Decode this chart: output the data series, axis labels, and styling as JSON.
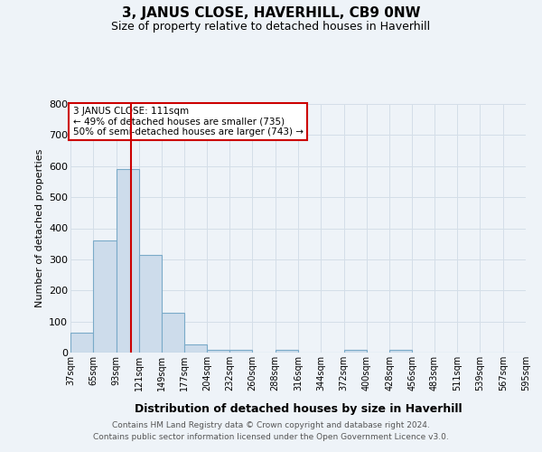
{
  "title": "3, JANUS CLOSE, HAVERHILL, CB9 0NW",
  "subtitle": "Size of property relative to detached houses in Haverhill",
  "xlabel": "Distribution of detached houses by size in Haverhill",
  "ylabel": "Number of detached properties",
  "bar_values": [
    65,
    360,
    590,
    315,
    128,
    27,
    9,
    8,
    0,
    8,
    0,
    0,
    8,
    0,
    8,
    0,
    0,
    0,
    0,
    0
  ],
  "bin_edges": [
    37,
    65,
    93,
    121,
    149,
    177,
    204,
    232,
    260,
    288,
    316,
    344,
    372,
    400,
    428,
    456,
    483,
    511,
    539,
    567,
    595
  ],
  "xtick_labels": [
    "37sqm",
    "65sqm",
    "93sqm",
    "121sqm",
    "149sqm",
    "177sqm",
    "204sqm",
    "232sqm",
    "260sqm",
    "288sqm",
    "316sqm",
    "344sqm",
    "372sqm",
    "400sqm",
    "428sqm",
    "456sqm",
    "483sqm",
    "511sqm",
    "539sqm",
    "567sqm",
    "595sqm"
  ],
  "bar_color": "#cddceb",
  "bar_edge_color": "#7aaac8",
  "vline_x": 111,
  "vline_color": "#cc0000",
  "ylim": [
    0,
    800
  ],
  "yticks": [
    0,
    100,
    200,
    300,
    400,
    500,
    600,
    700,
    800
  ],
  "annotation_lines": [
    "3 JANUS CLOSE: 111sqm",
    "← 49% of detached houses are smaller (735)",
    "50% of semi-detached houses are larger (743) →"
  ],
  "annotation_box_color": "#ffffff",
  "annotation_box_edge_color": "#cc0000",
  "footer_line1": "Contains HM Land Registry data © Crown copyright and database right 2024.",
  "footer_line2": "Contains public sector information licensed under the Open Government Licence v3.0.",
  "grid_color": "#d4dee8",
  "background_color": "#eef3f8"
}
